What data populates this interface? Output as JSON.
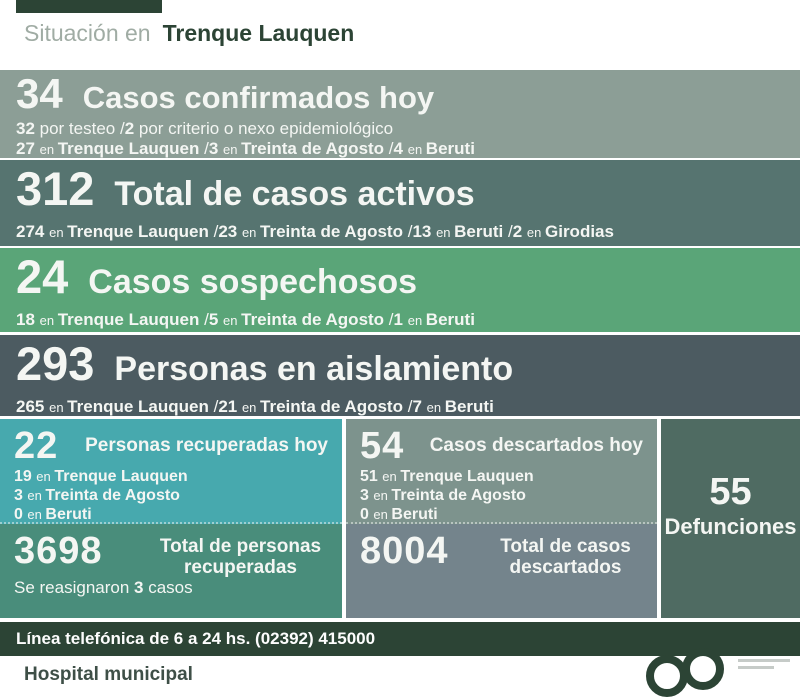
{
  "colors": {
    "dark_green": "#2C4435",
    "row_confirmados": "#8C9E96",
    "row_activos": "#567470",
    "row_sospechosos": "#5AA578",
    "row_aislamiento": "#4C5B61",
    "panel_recuperadas_hoy": "#47A9AE",
    "panel_descartados_hoy": "#7D938D",
    "panel_total_recuperadas": "#498D7B",
    "panel_total_descartados": "#74848C",
    "panel_defunciones": "#4F6B62",
    "header_muted": "#A0ACA4"
  },
  "header": {
    "prefix": "Situación en",
    "location": "Trenque Lauquen"
  },
  "rows": [
    {
      "id": "confirmados",
      "number": "34",
      "title": "Casos confirmados hoy",
      "lines": [
        [
          {
            "t": "32 ",
            "s": "b"
          },
          {
            "t": "por testeo  /",
            "s": "r"
          },
          {
            "t": "2 ",
            "s": "b"
          },
          {
            "t": "por criterio o nexo epidemiológico",
            "s": "r"
          }
        ],
        [
          {
            "t": "27 ",
            "s": "b"
          },
          {
            "t": "en ",
            "s": "sm"
          },
          {
            "t": "Trenque Lauquen  ",
            "s": "b"
          },
          {
            "t": "/",
            "s": "r"
          },
          {
            "t": "3 ",
            "s": "b"
          },
          {
            "t": "en ",
            "s": "sm"
          },
          {
            "t": "Treinta de Agosto  ",
            "s": "b"
          },
          {
            "t": "/",
            "s": "r"
          },
          {
            "t": "4 ",
            "s": "b"
          },
          {
            "t": "en ",
            "s": "sm"
          },
          {
            "t": "Beruti",
            "s": "b"
          }
        ]
      ]
    },
    {
      "id": "activos",
      "number": "312",
      "title": "Total de casos activos",
      "lines": [
        [
          {
            "t": "274 ",
            "s": "b"
          },
          {
            "t": "en ",
            "s": "sm"
          },
          {
            "t": "Trenque Lauquen  ",
            "s": "b"
          },
          {
            "t": "/",
            "s": "r"
          },
          {
            "t": "23 ",
            "s": "b"
          },
          {
            "t": "en ",
            "s": "sm"
          },
          {
            "t": "Treinta de Agosto  ",
            "s": "b"
          },
          {
            "t": "/",
            "s": "r"
          },
          {
            "t": "13 ",
            "s": "b"
          },
          {
            "t": "en ",
            "s": "sm"
          },
          {
            "t": "Beruti  ",
            "s": "b"
          },
          {
            "t": "/",
            "s": "r"
          },
          {
            "t": "2 ",
            "s": "b"
          },
          {
            "t": "en ",
            "s": "sm"
          },
          {
            "t": "Girodias",
            "s": "b"
          }
        ]
      ]
    },
    {
      "id": "sospechosos",
      "number": "24",
      "title": "Casos sospechosos",
      "lines": [
        [
          {
            "t": "18 ",
            "s": "b"
          },
          {
            "t": "en ",
            "s": "sm"
          },
          {
            "t": "Trenque Lauquen  ",
            "s": "b"
          },
          {
            "t": "/",
            "s": "r"
          },
          {
            "t": "5 ",
            "s": "b"
          },
          {
            "t": "en ",
            "s": "sm"
          },
          {
            "t": "Treinta de Agosto  ",
            "s": "b"
          },
          {
            "t": "/",
            "s": "r"
          },
          {
            "t": "1 ",
            "s": "b"
          },
          {
            "t": "en ",
            "s": "sm"
          },
          {
            "t": "Beruti",
            "s": "b"
          }
        ]
      ]
    },
    {
      "id": "aislamiento",
      "number": "293",
      "title": "Personas en aislamiento",
      "lines": [
        [
          {
            "t": "265 ",
            "s": "b"
          },
          {
            "t": "en ",
            "s": "sm"
          },
          {
            "t": "Trenque Lauquen  ",
            "s": "b"
          },
          {
            "t": "/",
            "s": "r"
          },
          {
            "t": "21 ",
            "s": "b"
          },
          {
            "t": "en ",
            "s": "sm"
          },
          {
            "t": "Treinta de Agosto  ",
            "s": "b"
          },
          {
            "t": "/",
            "s": "r"
          },
          {
            "t": "7 ",
            "s": "b"
          },
          {
            "t": "en ",
            "s": "sm"
          },
          {
            "t": "Beruti",
            "s": "b"
          }
        ]
      ]
    }
  ],
  "panels": {
    "recuperadas_hoy": {
      "number": "22",
      "title": "Personas recuperadas hoy",
      "lines": [
        [
          {
            "t": "19 ",
            "s": "b"
          },
          {
            "t": "en ",
            "s": "sm"
          },
          {
            "t": "Trenque Lauquen",
            "s": "b"
          }
        ],
        [
          {
            "t": "3 ",
            "s": "b"
          },
          {
            "t": "en ",
            "s": "sm"
          },
          {
            "t": "Treinta de Agosto",
            "s": "b"
          }
        ],
        [
          {
            "t": "0 ",
            "s": "b"
          },
          {
            "t": "en ",
            "s": "sm"
          },
          {
            "t": "Beruti",
            "s": "b"
          }
        ]
      ]
    },
    "descartados_hoy": {
      "number": "54",
      "title": "Casos descartados hoy",
      "lines": [
        [
          {
            "t": "51 ",
            "s": "b"
          },
          {
            "t": "en ",
            "s": "sm"
          },
          {
            "t": "Trenque Lauquen",
            "s": "b"
          }
        ],
        [
          {
            "t": "3 ",
            "s": "b"
          },
          {
            "t": "en ",
            "s": "sm"
          },
          {
            "t": "Treinta de Agosto",
            "s": "b"
          }
        ],
        [
          {
            "t": "0 ",
            "s": "b"
          },
          {
            "t": "en ",
            "s": "sm"
          },
          {
            "t": "Beruti",
            "s": "b"
          }
        ]
      ]
    },
    "total_recuperadas": {
      "number": "3698",
      "title": "Total de personas recuperadas",
      "note": [
        {
          "t": "Se reasignaron ",
          "s": "r"
        },
        {
          "t": "3 ",
          "s": "b"
        },
        {
          "t": "casos",
          "s": "r"
        }
      ]
    },
    "total_descartados": {
      "number": "8004",
      "title": "Total de casos descartados"
    },
    "defunciones": {
      "number": "55",
      "label": "Defunciones"
    }
  },
  "footer": {
    "phone_line": "Línea telefónica de 6 a 24 hs. (02392) 415000",
    "hospital": "Hospital municipal"
  },
  "chart_data": {
    "type": "table",
    "title": "Situación en Trenque Lauquen",
    "metrics": [
      {
        "label": "Casos confirmados hoy",
        "value": 34,
        "breakdown": {
          "por testeo": 32,
          "por criterio o nexo epidemiológico": 2,
          "Trenque Lauquen": 27,
          "Treinta de Agosto": 3,
          "Beruti": 4
        }
      },
      {
        "label": "Total de casos activos",
        "value": 312,
        "breakdown": {
          "Trenque Lauquen": 274,
          "Treinta de Agosto": 23,
          "Beruti": 13,
          "Girodias": 2
        }
      },
      {
        "label": "Casos sospechosos",
        "value": 24,
        "breakdown": {
          "Trenque Lauquen": 18,
          "Treinta de Agosto": 5,
          "Beruti": 1
        }
      },
      {
        "label": "Personas en aislamiento",
        "value": 293,
        "breakdown": {
          "Trenque Lauquen": 265,
          "Treinta de Agosto": 21,
          "Beruti": 7
        }
      },
      {
        "label": "Personas recuperadas hoy",
        "value": 22,
        "breakdown": {
          "Trenque Lauquen": 19,
          "Treinta de Agosto": 3,
          "Beruti": 0
        }
      },
      {
        "label": "Casos descartados hoy",
        "value": 54,
        "breakdown": {
          "Trenque Lauquen": 51,
          "Treinta de Agosto": 3,
          "Beruti": 0
        }
      },
      {
        "label": "Total de personas recuperadas",
        "value": 3698,
        "note": "Se reasignaron 3 casos"
      },
      {
        "label": "Total de casos descartados",
        "value": 8004
      },
      {
        "label": "Defunciones",
        "value": 55
      }
    ]
  }
}
